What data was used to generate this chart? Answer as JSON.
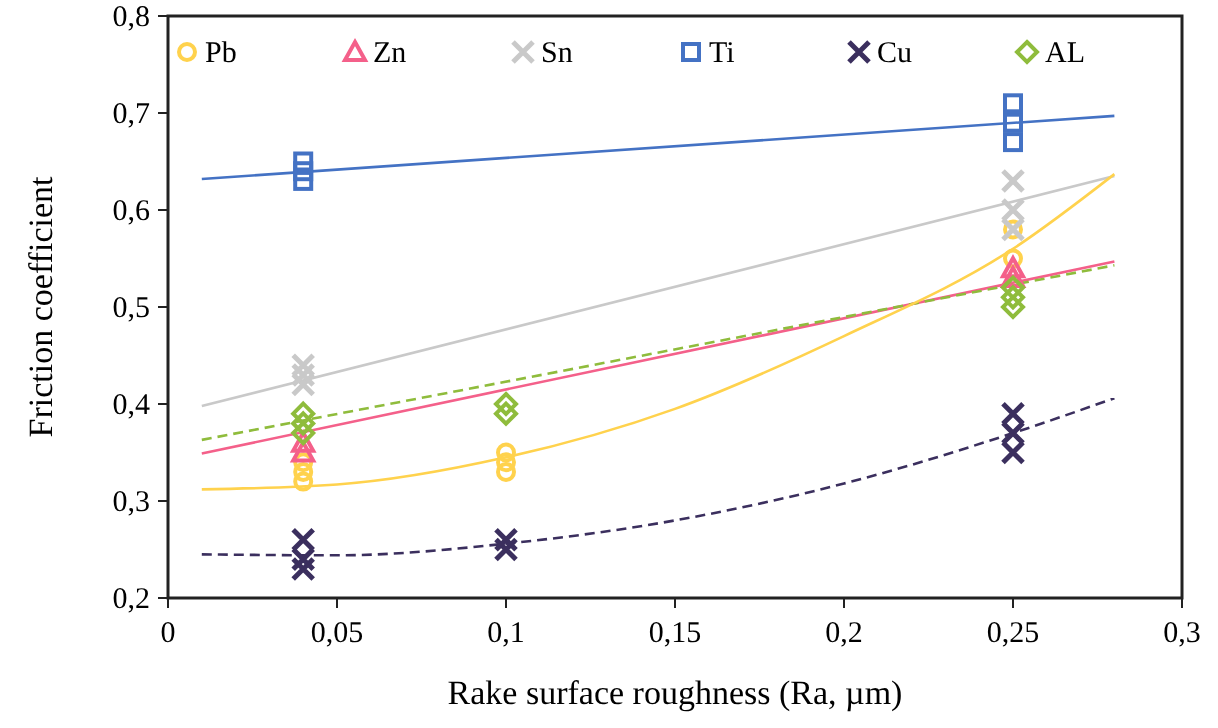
{
  "chart_data": {
    "type": "scatter",
    "xlabel": "Rake surface roughness (Ra, µm)",
    "ylabel": "Friction coefficient",
    "xlim": [
      0,
      0.3
    ],
    "ylim": [
      0.2,
      0.8
    ],
    "xticks": [
      0,
      {
        "value": 0.05,
        "label": "0,05"
      },
      {
        "value": 0.1,
        "label": "0,1"
      },
      {
        "value": 0.15,
        "label": "0,15"
      },
      {
        "value": 0.2,
        "label": "0,2"
      },
      {
        "value": 0.25,
        "label": "0,25"
      },
      {
        "value": 0.3,
        "label": "0,3"
      }
    ],
    "yticks": [
      {
        "value": 0.2,
        "label": "0,2"
      },
      {
        "value": 0.3,
        "label": "0,3"
      },
      {
        "value": 0.4,
        "label": "0,4"
      },
      {
        "value": 0.5,
        "label": "0,5"
      },
      {
        "value": 0.6,
        "label": "0,6"
      },
      {
        "value": 0.7,
        "label": "0,7"
      },
      {
        "value": 0.8,
        "label": "0,8"
      }
    ],
    "grid": false,
    "legend": "top",
    "series": [
      {
        "type": "line",
        "color": "#4472c4",
        "line_style": "solid",
        "x": [
          0.01,
          0.28
        ],
        "values": [
          0.632,
          0.697
        ]
      },
      {
        "type": "line",
        "color": "#c9c9c9",
        "line_style": "solid",
        "x": [
          0.01,
          0.28
        ],
        "values": [
          0.398,
          0.635
        ]
      },
      {
        "type": "line",
        "color": "#f4608a",
        "line_style": "solid",
        "x": [
          0.01,
          0.28
        ],
        "values": [
          0.349,
          0.547
        ]
      },
      {
        "type": "line",
        "color": "#8fbc3c",
        "line_style": "dashed",
        "x": [
          0.01,
          0.28
        ],
        "values": [
          0.363,
          0.543
        ]
      },
      {
        "type": "line",
        "color": "#ffd24d",
        "line_style": "solid",
        "x": [
          0.01,
          0.05,
          0.1,
          0.15,
          0.2,
          0.25,
          0.28
        ],
        "values": [
          0.312,
          0.317,
          0.345,
          0.395,
          0.47,
          0.56,
          0.637
        ]
      },
      {
        "type": "line",
        "color": "#3b2f5e",
        "line_style": "dashed",
        "x": [
          0.01,
          0.05,
          0.1,
          0.15,
          0.2,
          0.25,
          0.28
        ],
        "values": [
          0.245,
          0.244,
          0.256,
          0.28,
          0.318,
          0.37,
          0.406
        ]
      },
      {
        "name": "Pb",
        "color": "#ffd24d",
        "marker": "circle",
        "x": [
          0.04,
          0.04,
          0.04,
          0.1,
          0.1,
          0.1,
          0.25,
          0.25
        ],
        "values": [
          0.32,
          0.33,
          0.34,
          0.33,
          0.34,
          0.35,
          0.55,
          0.58
        ]
      },
      {
        "name": "Zn",
        "color": "#f4608a",
        "marker": "triangle",
        "x": [
          0.04,
          0.04,
          0.25,
          0.25
        ],
        "values": [
          0.35,
          0.36,
          0.53,
          0.54
        ]
      },
      {
        "name": "Sn",
        "color": "#c9c9c9",
        "marker": "cross",
        "x": [
          0.04,
          0.04,
          0.04,
          0.25,
          0.25,
          0.25
        ],
        "values": [
          0.42,
          0.43,
          0.44,
          0.58,
          0.6,
          0.63
        ]
      },
      {
        "name": "Ti",
        "color": "#4472c4",
        "marker": "square",
        "x": [
          0.04,
          0.04,
          0.04,
          0.25,
          0.25,
          0.25
        ],
        "values": [
          0.63,
          0.64,
          0.65,
          0.67,
          0.69,
          0.71
        ]
      },
      {
        "name": "Cu",
        "color": "#3b2f5e",
        "marker": "cross",
        "x": [
          0.04,
          0.04,
          0.04,
          0.1,
          0.1,
          0.25,
          0.25,
          0.25
        ],
        "values": [
          0.23,
          0.24,
          0.26,
          0.25,
          0.26,
          0.35,
          0.37,
          0.39
        ]
      },
      {
        "name": "AL",
        "color": "#8fbc3c",
        "marker": "diamond",
        "x": [
          0.04,
          0.04,
          0.04,
          0.1,
          0.1,
          0.25,
          0.25,
          0.25
        ],
        "values": [
          0.37,
          0.38,
          0.39,
          0.39,
          0.4,
          0.5,
          0.51,
          0.52
        ]
      }
    ]
  }
}
